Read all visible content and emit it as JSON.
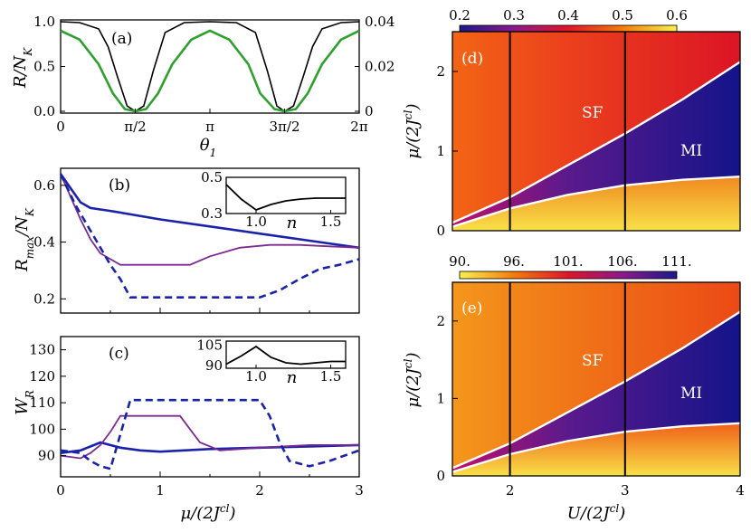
{
  "chart_data": [
    {
      "id": "a",
      "type": "line",
      "panel_label": "(a)",
      "xlabel": "θ1",
      "ylabel": "R/N_K",
      "xlim": [
        0,
        6.2832
      ],
      "ylim": [
        0,
        1
      ],
      "x_ticks": [
        "0",
        "π/2",
        "π",
        "3π/2",
        "2π"
      ],
      "y_ticks": [
        "0.0",
        "0.5",
        "1.0"
      ],
      "y2lim": [
        0,
        0.04
      ],
      "y2_ticks": [
        "0",
        "0.02",
        "0.04"
      ],
      "series": [
        {
          "name": "black",
          "color": "#000000",
          "axis": "left",
          "x": [
            0,
            0.4,
            0.8,
            1.0,
            1.2,
            1.4,
            1.5708,
            1.75,
            1.95,
            2.2,
            2.6,
            3.1416,
            3.7,
            4.1,
            4.35,
            4.55,
            4.7124,
            4.9,
            5.1,
            5.3,
            5.5,
            5.9,
            6.2832
          ],
          "y": [
            1.0,
            0.99,
            0.92,
            0.72,
            0.38,
            0.06,
            0.0,
            0.06,
            0.45,
            0.88,
            0.99,
            1.0,
            0.99,
            0.88,
            0.45,
            0.06,
            0.0,
            0.06,
            0.38,
            0.72,
            0.92,
            0.99,
            1.0
          ]
        },
        {
          "name": "green",
          "color": "#2ea02e",
          "axis": "right",
          "x": [
            0,
            0.4,
            0.8,
            1.1,
            1.35,
            1.5708,
            1.8,
            2.05,
            2.35,
            2.75,
            3.1416,
            3.55,
            3.95,
            4.2,
            4.5,
            4.7124,
            4.95,
            5.2,
            5.5,
            5.9,
            6.2832
          ],
          "y": [
            0.036,
            0.032,
            0.021,
            0.008,
            0.001,
            0.0,
            0.001,
            0.008,
            0.021,
            0.032,
            0.036,
            0.032,
            0.021,
            0.008,
            0.001,
            0.0,
            0.001,
            0.008,
            0.021,
            0.032,
            0.036
          ]
        }
      ]
    },
    {
      "id": "b",
      "type": "line",
      "panel_label": "(b)",
      "xlabel": "",
      "ylabel": "R_max/N_K",
      "xlim": [
        0,
        3
      ],
      "ylim": [
        0.15,
        0.66
      ],
      "y_ticks": [
        "0.2",
        "0.4",
        "0.6"
      ],
      "series": [
        {
          "name": "blue",
          "color": "#1a23a8",
          "style": "solid",
          "x": [
            0,
            0.1,
            0.2,
            0.3,
            0.5,
            1.0,
            1.5,
            2.0,
            2.5,
            3.0
          ],
          "y": [
            0.64,
            0.59,
            0.54,
            0.52,
            0.51,
            0.48,
            0.455,
            0.43,
            0.405,
            0.38
          ]
        },
        {
          "name": "purple",
          "color": "#7b2a8f",
          "style": "solid",
          "x": [
            0,
            0.1,
            0.2,
            0.3,
            0.4,
            0.5,
            0.6,
            1.0,
            1.3,
            1.5,
            1.8,
            2.1,
            2.4,
            2.7,
            3.0
          ],
          "y": [
            0.64,
            0.56,
            0.48,
            0.41,
            0.36,
            0.34,
            0.32,
            0.32,
            0.32,
            0.35,
            0.38,
            0.39,
            0.39,
            0.385,
            0.38
          ]
        },
        {
          "name": "blue-dashed",
          "color": "#1a23a8",
          "style": "dashed",
          "x": [
            0,
            0.15,
            0.3,
            0.4,
            0.5,
            0.6,
            0.7,
            1.0,
            1.5,
            2.0,
            2.2,
            2.4,
            2.6,
            2.8,
            3.0
          ],
          "y": [
            0.64,
            0.53,
            0.44,
            0.38,
            0.32,
            0.27,
            0.205,
            0.205,
            0.205,
            0.205,
            0.23,
            0.27,
            0.305,
            0.32,
            0.34
          ]
        }
      ],
      "inset": {
        "xlim": [
          0.8,
          1.6
        ],
        "ylim": [
          0.3,
          0.5
        ],
        "x_ticks": [
          "1.0",
          "1.5"
        ],
        "y_ticks": [
          "0.3",
          "0.5"
        ],
        "xlabel": "n",
        "x": [
          0.8,
          0.9,
          1.0,
          1.1,
          1.2,
          1.3,
          1.4,
          1.5,
          1.6
        ],
        "y": [
          0.46,
          0.38,
          0.32,
          0.35,
          0.37,
          0.38,
          0.385,
          0.385,
          0.385
        ]
      }
    },
    {
      "id": "c",
      "type": "line",
      "panel_label": "(c)",
      "xlabel": "μ/(2J^cl)",
      "ylabel": "W_R",
      "xlim": [
        0,
        3
      ],
      "ylim": [
        82,
        135
      ],
      "x_ticks": [
        "0",
        "1",
        "2",
        "3"
      ],
      "y_ticks": [
        "90",
        "100",
        "110",
        "120",
        "130"
      ],
      "series": [
        {
          "name": "blue",
          "color": "#1a23a8",
          "style": "solid",
          "x": [
            0,
            0.2,
            0.4,
            0.6,
            0.8,
            1.0,
            1.5,
            2.0,
            2.5,
            3.0
          ],
          "y": [
            91,
            92,
            95,
            93,
            92,
            91.5,
            92.5,
            93,
            93.5,
            94
          ]
        },
        {
          "name": "purple",
          "color": "#7b2a8f",
          "style": "solid",
          "x": [
            0,
            0.2,
            0.3,
            0.4,
            0.5,
            0.6,
            1.0,
            1.2,
            1.3,
            1.4,
            1.6,
            2.0,
            2.5,
            3.0
          ],
          "y": [
            90,
            89,
            91,
            94,
            99,
            105,
            105,
            105,
            100,
            95,
            92,
            93,
            94,
            94
          ]
        },
        {
          "name": "blue-dashed",
          "color": "#1a23a8",
          "style": "dashed",
          "x": [
            0,
            0.2,
            0.3,
            0.4,
            0.5,
            0.6,
            0.7,
            1.0,
            1.5,
            2.0,
            2.1,
            2.2,
            2.3,
            2.5,
            2.7,
            3.0
          ],
          "y": [
            92,
            91,
            88,
            86,
            85,
            98,
            111,
            111,
            111,
            111,
            105,
            95,
            88,
            86,
            88,
            92
          ]
        }
      ],
      "inset": {
        "xlim": [
          0.8,
          1.6
        ],
        "ylim": [
          88,
          108
        ],
        "x_ticks": [
          "1.0",
          "1.5"
        ],
        "y_ticks": [
          "90",
          "105"
        ],
        "xlabel": "n",
        "x": [
          0.8,
          0.9,
          1.0,
          1.1,
          1.2,
          1.3,
          1.4,
          1.5,
          1.6
        ],
        "y": [
          91,
          97,
          104,
          96,
          92,
          91,
          92,
          93,
          93
        ]
      }
    },
    {
      "id": "d",
      "type": "heatmap",
      "panel_label": "(d)",
      "xlabel": "",
      "ylabel": "μ/(2J^cl)",
      "xlim": [
        1.5,
        4
      ],
      "ylim": [
        0,
        2.5
      ],
      "y_ticks": [
        "0",
        "1",
        "2"
      ],
      "colorbar": {
        "range": [
          0.2,
          0.6
        ],
        "ticks": [
          "0.2",
          "0.3",
          "0.4",
          "0.5",
          "0.6"
        ]
      },
      "region_labels": [
        "SF",
        "MI"
      ],
      "vlines": [
        2,
        3
      ],
      "upper_boundary": {
        "x": [
          1.5,
          2.0,
          2.5,
          3.0,
          3.5,
          4.0
        ],
        "y": [
          0.1,
          0.42,
          0.82,
          1.22,
          1.65,
          2.12
        ]
      },
      "lower_boundary": {
        "x": [
          1.5,
          2.0,
          2.5,
          3.0,
          3.5,
          4.0
        ],
        "y": [
          0.05,
          0.28,
          0.45,
          0.57,
          0.64,
          0.68
        ]
      }
    },
    {
      "id": "e",
      "type": "heatmap",
      "panel_label": "(e)",
      "xlabel": "U/(2J^cl)",
      "ylabel": "μ/(2J^cl)",
      "xlim": [
        1.5,
        4
      ],
      "ylim": [
        0,
        2.5
      ],
      "x_ticks": [
        "2",
        "3",
        "4"
      ],
      "y_ticks": [
        "0",
        "1",
        "2"
      ],
      "colorbar": {
        "range": [
          90,
          111
        ],
        "ticks": [
          "90.",
          "96.",
          "101.",
          "106.",
          "111."
        ]
      },
      "region_labels": [
        "SF",
        "MI"
      ],
      "vlines": [
        2,
        3
      ],
      "upper_boundary": {
        "x": [
          1.5,
          2.0,
          2.5,
          3.0,
          3.5,
          4.0
        ],
        "y": [
          0.1,
          0.42,
          0.82,
          1.22,
          1.65,
          2.12
        ]
      },
      "lower_boundary": {
        "x": [
          1.5,
          2.0,
          2.5,
          3.0,
          3.5,
          4.0
        ],
        "y": [
          0.05,
          0.28,
          0.45,
          0.57,
          0.64,
          0.68
        ]
      }
    }
  ]
}
